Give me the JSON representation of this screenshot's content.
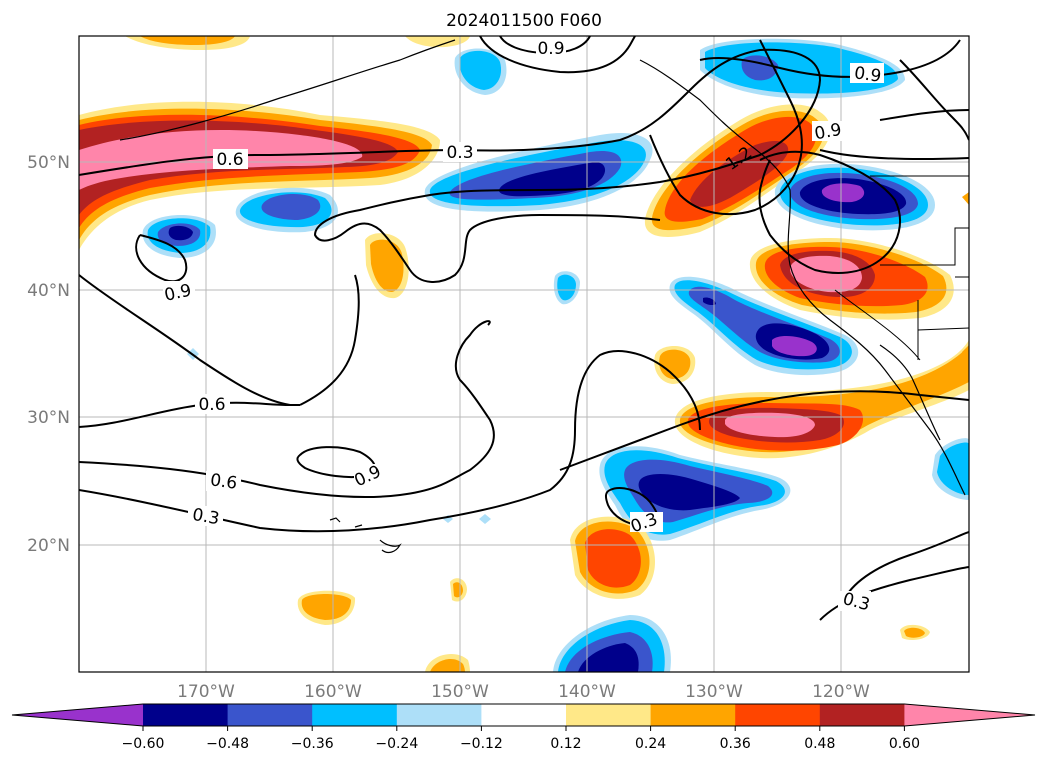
{
  "map": {
    "title": "2024011500 F060",
    "lon_labels": [
      "170°W",
      "160°W",
      "150°W",
      "140°W",
      "130°W",
      "120°W"
    ],
    "lat_labels": [
      "50°N",
      "40°N",
      "30°N",
      "20°N"
    ]
  },
  "colorbar": {
    "tick_labels": [
      "−0.60",
      "−0.48",
      "−0.36",
      "−0.24",
      "−0.12",
      "0.12",
      "0.24",
      "0.36",
      "0.48",
      "0.60"
    ],
    "colors": [
      "#9932CC",
      "#00008B",
      "#3A55CC",
      "#00BFFF",
      "#ADDFF8",
      "#FFFFFF",
      "#FFE888",
      "#FFA500",
      "#FF4500",
      "#B22222",
      "#FF85AA"
    ]
  },
  "contour_labels": [
    "0.9",
    "0.9",
    "0.9",
    "0.6",
    "0.3",
    "0.9",
    "0.6",
    "0.9",
    "0.6",
    "0.3",
    "0.3",
    "0.3",
    "1.2"
  ]
}
